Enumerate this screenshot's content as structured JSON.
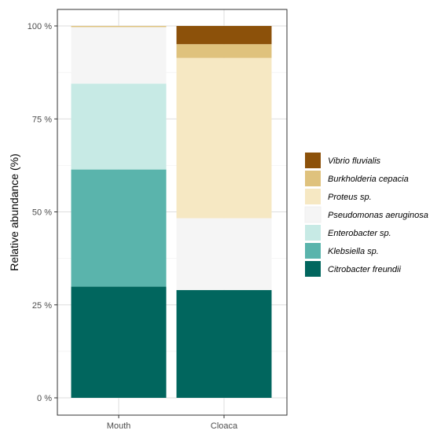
{
  "chart_data": {
    "type": "bar",
    "stacked": true,
    "categories": [
      "Mouth",
      "Cloaca"
    ],
    "ylabel": "Relative abundance (%)",
    "xlabel": "",
    "ylim": [
      0,
      100
    ],
    "yticks": [
      0,
      25,
      50,
      75,
      100
    ],
    "ytick_labels": [
      "0 %",
      "25 %",
      "50 %",
      "75 %",
      "100 %"
    ],
    "grid": true,
    "legend_position": "right",
    "series": [
      {
        "name": "Citrobacter freundii",
        "color": "#01665e",
        "values": [
          29.9,
          29.0
        ]
      },
      {
        "name": "Klebsiella sp.",
        "color": "#5ab4ac",
        "values": [
          31.5,
          0
        ]
      },
      {
        "name": "Enterobacter sp.",
        "color": "#c7eae5",
        "values": [
          23.1,
          0
        ]
      },
      {
        "name": "Pseudomonas aeruginosa",
        "color": "#f5f5f5",
        "values": [
          15.2,
          19.3
        ]
      },
      {
        "name": "Proteus sp.",
        "color": "#f6e8c3",
        "values": [
          0,
          43.1
        ]
      },
      {
        "name": "Burkholderia cepacia",
        "color": "#dfc27d",
        "values": [
          0.3,
          3.7
        ]
      },
      {
        "name": "Vibrio fluvialis",
        "color": "#8c510a",
        "values": [
          0,
          4.9
        ]
      }
    ]
  }
}
